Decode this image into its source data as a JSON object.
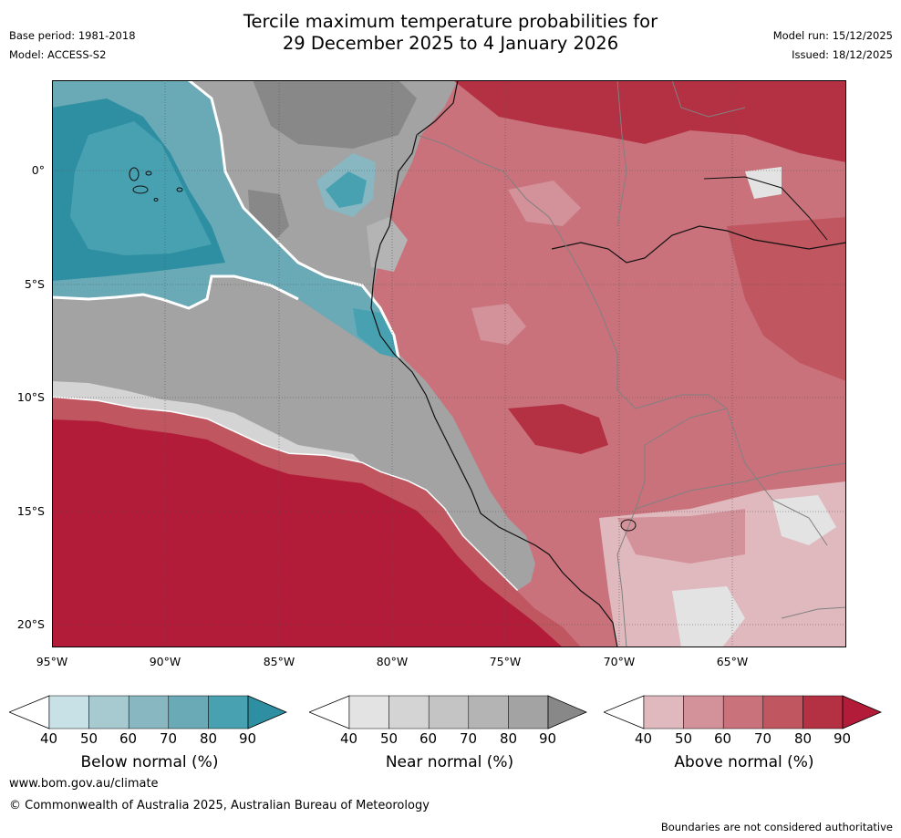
{
  "title": {
    "line1": "Tercile maximum temperature probabilities for",
    "line2": "29 December 2025 to 4 January 2026"
  },
  "meta": {
    "base_period": "Base period: 1981-2018",
    "model": "Model: ACCESS-S2",
    "model_run": "Model run: 15/12/2025",
    "issued": "Issued: 18/12/2025"
  },
  "map": {
    "region": "Eastern tropical Pacific and western South America",
    "lat_ticks": [
      "0°",
      "5°S",
      "10°S",
      "15°S",
      "20°S"
    ],
    "lon_ticks": [
      "95°W",
      "90°W",
      "85°W",
      "80°W",
      "75°W",
      "70°W",
      "65°W"
    ]
  },
  "colorbars": [
    {
      "title": "Below normal (%)",
      "ticks": [
        "40",
        "50",
        "60",
        "70",
        "80",
        "90"
      ],
      "colors": [
        "#ffffff",
        "#c8e1e6",
        "#a7c9d0",
        "#88b7c2",
        "#6aa9b6",
        "#48a1b1",
        "#2e8fa2"
      ]
    },
    {
      "title": "Near normal (%)",
      "ticks": [
        "40",
        "50",
        "60",
        "70",
        "80",
        "90"
      ],
      "colors": [
        "#ffffff",
        "#e3e3e3",
        "#d4d4d4",
        "#c4c4c4",
        "#b4b4b4",
        "#a3a3a3",
        "#888888"
      ]
    },
    {
      "title": "Above normal (%)",
      "ticks": [
        "40",
        "50",
        "60",
        "70",
        "80",
        "90"
      ],
      "colors": [
        "#ffffff",
        "#e0b9bf",
        "#d39199",
        "#c9727c",
        "#c0565f",
        "#b43143",
        "#b31c38"
      ]
    }
  ],
  "footer": {
    "website": "www.bom.gov.au/climate",
    "copyright": "© Commonwealth of Australia 2025, Australian Bureau of Meteorology",
    "disclaimer": "Boundaries are not considered authoritative"
  }
}
